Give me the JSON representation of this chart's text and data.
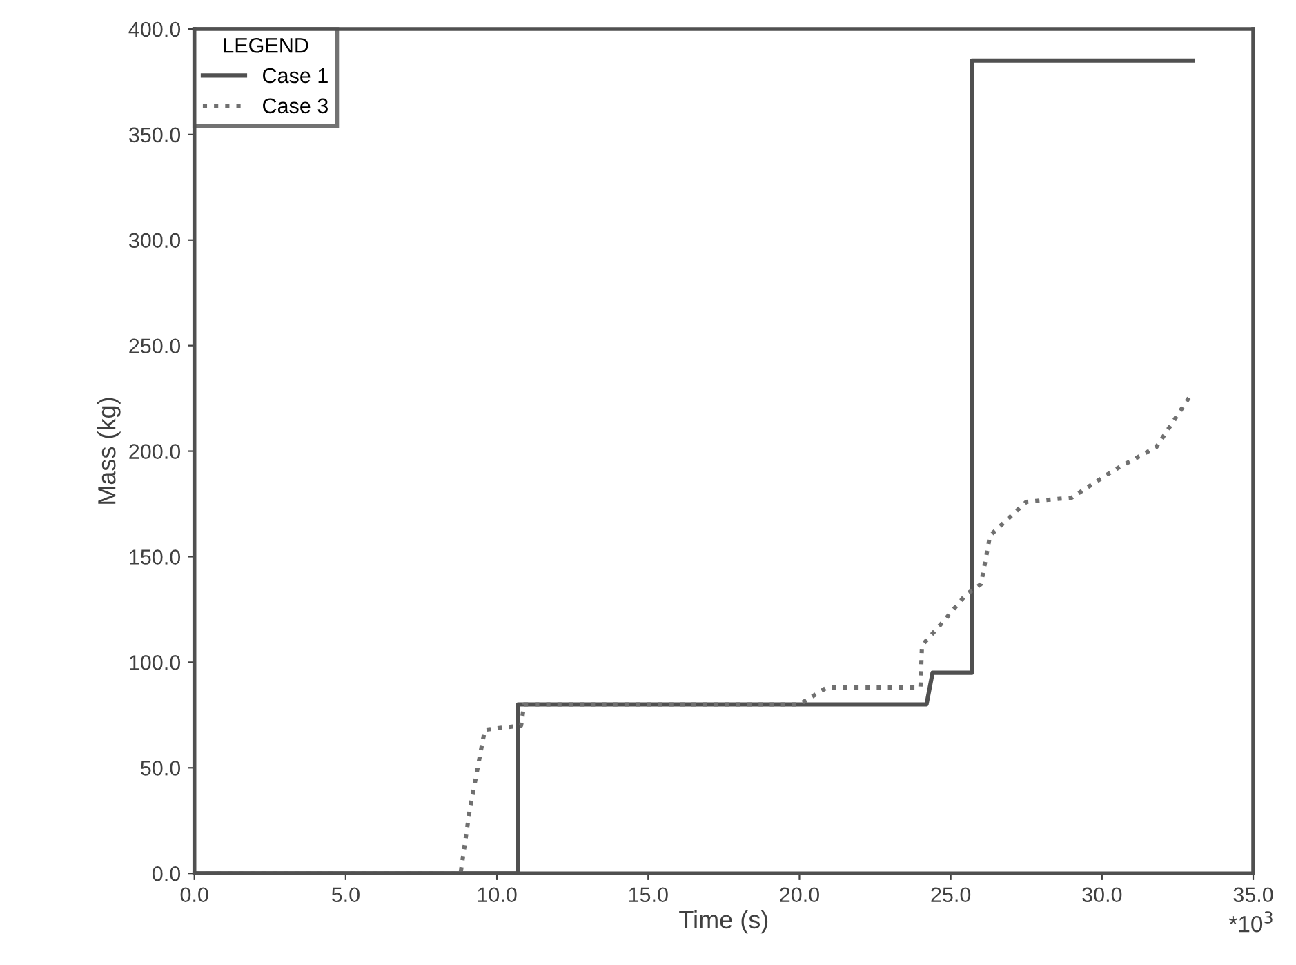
{
  "chart_data": {
    "type": "line",
    "xlabel": "Time (s)",
    "ylabel": "Mass (kg)",
    "legend_title": "LEGEND",
    "legend": "top left",
    "grid": false,
    "marker": "none",
    "annotations": [
      "*10$^{3}$"
    ],
    "xlim": [
      0,
      35
    ],
    "ylim": [
      0,
      400
    ],
    "xticks": [
      {
        "value": 0,
        "label": "0.0"
      },
      {
        "value": 5,
        "label": "5.0"
      },
      {
        "value": 10,
        "label": "10.0"
      },
      {
        "value": 15,
        "label": "15.0"
      },
      {
        "value": 20,
        "label": "20.0"
      },
      {
        "value": 25,
        "label": "25.0"
      },
      {
        "value": 30,
        "label": "30.0"
      },
      {
        "value": 35,
        "label": "35.0"
      }
    ],
    "yticks": [
      {
        "value": 0,
        "label": "0.0"
      },
      {
        "value": 50,
        "label": "50.0"
      },
      {
        "value": 100,
        "label": "100.0"
      },
      {
        "value": 150,
        "label": "150.0"
      },
      {
        "value": 200,
        "label": "200.0"
      },
      {
        "value": 250,
        "label": "250.0"
      },
      {
        "value": 300,
        "label": "300.0"
      },
      {
        "value": 350,
        "label": "350.0"
      },
      {
        "value": 400,
        "label": "400.0"
      }
    ],
    "series": [
      {
        "name": "Case 1",
        "color": "#505050",
        "line_style": "solid",
        "x": [
          0,
          10.7,
          10.7,
          24.2,
          24.4,
          25.7,
          25.7,
          33.0
        ],
        "values": [
          0,
          0,
          80,
          80,
          95,
          95,
          385,
          385
        ]
      },
      {
        "name": "Case 3",
        "color": "#707070",
        "line_style": "dotted",
        "x": [
          0,
          8.8,
          9.1,
          9.6,
          10.8,
          10.9,
          20.0,
          20.9,
          24.0,
          24.05,
          24.8,
          25.5,
          26.0,
          26.3,
          27.5,
          29.0,
          30.4,
          31.8,
          33.0
        ],
        "values": [
          0,
          0,
          30,
          68,
          70,
          80,
          80,
          88,
          88,
          108,
          120,
          132,
          137,
          160,
          176,
          178,
          191,
          202,
          228
        ]
      }
    ]
  }
}
